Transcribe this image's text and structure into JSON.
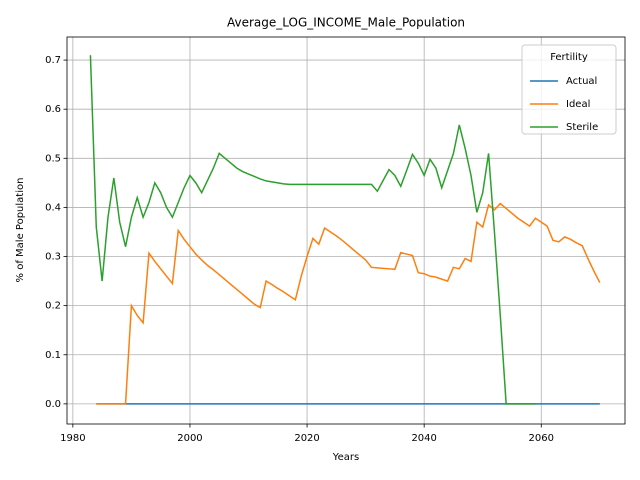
{
  "chart_data": {
    "type": "line",
    "title": "Average_LOG_INCOME_Male_Population",
    "xlabel": "Years",
    "ylabel": "% of Male Population",
    "x": [
      1983,
      1984,
      1985,
      1986,
      1987,
      1988,
      1989,
      1990,
      1991,
      1992,
      1993,
      1994,
      1995,
      1996,
      1997,
      1998,
      1999,
      2000,
      2001,
      2002,
      2003,
      2004,
      2005,
      2006,
      2007,
      2008,
      2009,
      2010,
      2011,
      2012,
      2013,
      2014,
      2015,
      2016,
      2017,
      2018,
      2019,
      2020,
      2021,
      2022,
      2023,
      2024,
      2025,
      2026,
      2027,
      2028,
      2029,
      2030,
      2031,
      2032,
      2033,
      2034,
      2035,
      2036,
      2037,
      2038,
      2039,
      2040,
      2041,
      2042,
      2043,
      2044,
      2045,
      2046,
      2047,
      2048,
      2049,
      2050,
      2051,
      2052,
      2053,
      2054,
      2055,
      2056,
      2057,
      2058,
      2059,
      2060,
      2061,
      2062,
      2063,
      2064,
      2065,
      2066,
      2067,
      2068,
      2069,
      2070
    ],
    "series": [
      {
        "name": "Actual",
        "color": "#1f77b4",
        "values": [
          null,
          0,
          0,
          0,
          0,
          0,
          0,
          0,
          0,
          0,
          0,
          0,
          0,
          0,
          0,
          0,
          0,
          0,
          0,
          0,
          0,
          0,
          0,
          0,
          0,
          0,
          0,
          0,
          0,
          0,
          0,
          0,
          0,
          0,
          0,
          0,
          0,
          0,
          0,
          0,
          0,
          0,
          0,
          0,
          0,
          0,
          0,
          0,
          0,
          0,
          0,
          0,
          0,
          0,
          0,
          0,
          0,
          0,
          0,
          0,
          0,
          0,
          0,
          0,
          0,
          0,
          0,
          0,
          0,
          0,
          0,
          0,
          0,
          0,
          0,
          0,
          0,
          0,
          0,
          0,
          0,
          0,
          0,
          0,
          0,
          0,
          0,
          0
        ]
      },
      {
        "name": "Ideal",
        "color": "#ff7f0e",
        "values": [
          null,
          0,
          0,
          0,
          0,
          0,
          0,
          0.2,
          0.18,
          0.165,
          0.307,
          0.29,
          0.275,
          0.26,
          0.245,
          0.353,
          0.335,
          0.32,
          0.305,
          0.293,
          0.282,
          0.273,
          0.263,
          0.253,
          0.243,
          0.233,
          0.223,
          0.213,
          0.203,
          0.196,
          0.25,
          0.243,
          0.235,
          0.228,
          0.22,
          0.212,
          0.26,
          0.3,
          0.337,
          0.325,
          0.358,
          0.35,
          0.342,
          0.333,
          0.323,
          0.313,
          0.303,
          0.293,
          0.278,
          0.277,
          0.276,
          0.275,
          0.274,
          0.308,
          0.305,
          0.302,
          0.267,
          0.265,
          0.26,
          0.258,
          0.254,
          0.25,
          0.278,
          0.275,
          0.296,
          0.29,
          0.37,
          0.36,
          0.405,
          0.395,
          0.408,
          0.398,
          0.388,
          0.378,
          0.37,
          0.362,
          0.378,
          0.37,
          0.362,
          0.333,
          0.33,
          0.34,
          0.335,
          0.328,
          0.322,
          0.295,
          0.27,
          0.247
        ]
      },
      {
        "name": "Sterile",
        "color": "#2ca02c",
        "values": [
          0.71,
          0.36,
          0.25,
          0.38,
          0.46,
          0.37,
          0.32,
          0.38,
          0.42,
          0.38,
          0.41,
          0.45,
          0.43,
          0.4,
          0.38,
          0.41,
          0.44,
          0.465,
          0.45,
          0.43,
          0.455,
          0.48,
          0.51,
          0.5,
          0.49,
          0.48,
          0.473,
          0.468,
          0.463,
          0.458,
          0.454,
          0.452,
          0.45,
          0.448,
          0.447,
          0.447,
          0.447,
          0.447,
          0.447,
          0.447,
          0.447,
          0.447,
          0.447,
          0.447,
          0.447,
          0.447,
          0.447,
          0.447,
          0.447,
          0.433,
          0.455,
          0.477,
          0.465,
          0.443,
          0.475,
          0.508,
          0.49,
          0.465,
          0.498,
          0.48,
          0.44,
          0.475,
          0.51,
          0.568,
          0.52,
          0.465,
          0.39,
          0.43,
          0.51,
          0.35,
          0.18,
          0,
          0,
          0,
          0,
          0,
          0,
          null,
          null,
          null,
          null,
          null,
          null,
          null,
          null,
          null,
          null,
          null
        ]
      }
    ],
    "xlim": [
      1979,
      2074.3
    ],
    "ylim": [
      -0.041,
      0.747
    ],
    "xticks": [
      1980,
      2000,
      2020,
      2040,
      2060
    ],
    "yticks": [
      {
        "value": 0,
        "label": "0.0"
      },
      0.1,
      0.2,
      0.3,
      0.4,
      0.5,
      0.6,
      0.7
    ],
    "grid": true,
    "legend": {
      "title": "Fertility",
      "loc": "upper right"
    }
  }
}
